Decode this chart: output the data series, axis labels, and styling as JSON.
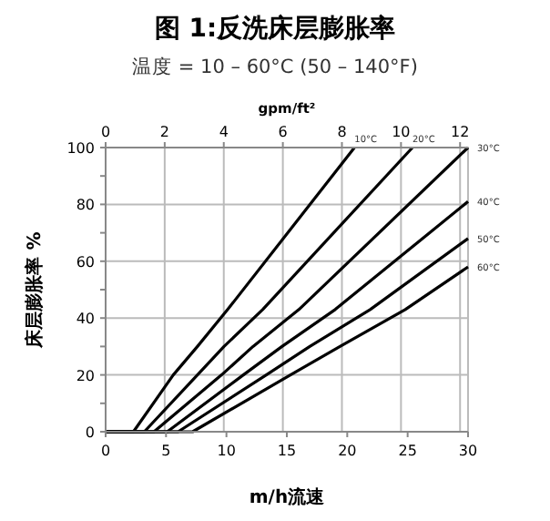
{
  "chart_data": {
    "type": "line",
    "title": "图 1:反洗床层膨胀率",
    "subtitle": "温度 = 10 – 60°C (50 – 140°F)",
    "xlabel": "m/h流速",
    "ylabel": "床层膨胀率 %",
    "x2label": "gpm/ft²",
    "xlim": [
      0,
      30
    ],
    "xticks": [
      0,
      5,
      10,
      15,
      20,
      25,
      30
    ],
    "ylim": [
      0,
      100
    ],
    "yticks": [
      0,
      {
        "value": 10,
        "label": null
      },
      20,
      {
        "value": 30,
        "label": null
      },
      40,
      {
        "value": 50,
        "label": null
      },
      60,
      {
        "value": 70,
        "label": null
      },
      80,
      {
        "value": 90,
        "label": null
      },
      100
    ],
    "x2lim": [
      0,
      12.27
    ],
    "x2ticks": [
      0,
      2,
      4,
      6,
      8,
      10,
      12
    ],
    "grid": true,
    "marker": "none",
    "line_style": "solid",
    "series": [
      {
        "name": "10°C",
        "color": "#000000",
        "x": [
          0,
          2.3,
          5.6,
          7.6,
          10.1,
          20.6
        ],
        "values": [
          0,
          0,
          20,
          30,
          43,
          100
        ]
      },
      {
        "name": "20°C",
        "color": "#000000",
        "x": [
          0,
          3.2,
          7.6,
          9.8,
          13,
          25.4
        ],
        "values": [
          0,
          0,
          20,
          30,
          43,
          100
        ]
      },
      {
        "name": "30°C",
        "color": "#000000",
        "x": [
          0,
          4,
          9.6,
          12.2,
          16,
          30
        ],
        "values": [
          0,
          0,
          20,
          30,
          43,
          100
        ]
      },
      {
        "name": "40°C",
        "color": "#000000",
        "x": [
          0,
          5.1,
          11.4,
          14.6,
          19,
          30
        ],
        "values": [
          0,
          0,
          20,
          30,
          43,
          81
        ]
      },
      {
        "name": "50°C",
        "color": "#000000",
        "x": [
          0,
          6,
          13.3,
          16.9,
          21.9,
          30
        ],
        "values": [
          0,
          0,
          20,
          30,
          43,
          68
        ]
      },
      {
        "name": "60°C",
        "color": "#000000",
        "x": [
          0,
          7.2,
          15.3,
          19.4,
          24.8,
          30
        ],
        "values": [
          0,
          0,
          20,
          30,
          43,
          58
        ]
      }
    ]
  }
}
